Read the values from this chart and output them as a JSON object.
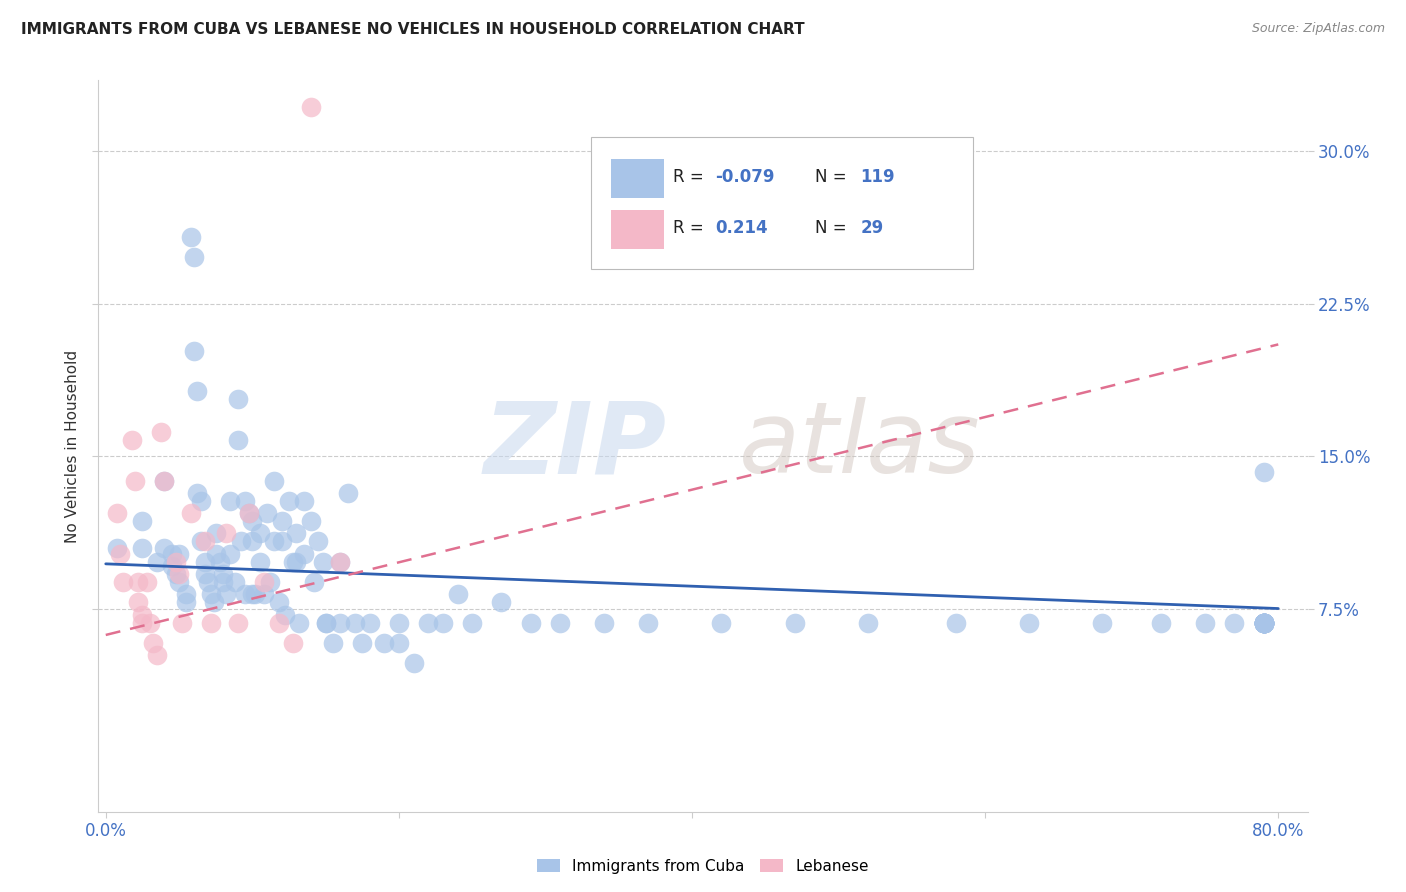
{
  "title": "IMMIGRANTS FROM CUBA VS LEBANESE NO VEHICLES IN HOUSEHOLD CORRELATION CHART",
  "source": "Source: ZipAtlas.com",
  "ylabel": "No Vehicles in Household",
  "ytick_labels": [
    "7.5%",
    "15.0%",
    "22.5%",
    "30.0%"
  ],
  "ytick_values": [
    0.075,
    0.15,
    0.225,
    0.3
  ],
  "xtick_labels": [
    "0.0%",
    "",
    "",
    "",
    "80.0%"
  ],
  "xtick_values": [
    0.0,
    0.2,
    0.4,
    0.6,
    0.8
  ],
  "xlim": [
    -0.005,
    0.82
  ],
  "ylim": [
    -0.025,
    0.335
  ],
  "legend_cuba_label": "Immigrants from Cuba",
  "legend_lebanese_label": "Lebanese",
  "cuba_color": "#a8c4e8",
  "lebanese_color": "#f4b8c8",
  "trend_cuba_color": "#3060b0",
  "trend_lebanese_color": "#e07090",
  "watermark_zip": "ZIP",
  "watermark_atlas": "atlas",
  "cuba_scatter_x": [
    0.008,
    0.025,
    0.025,
    0.035,
    0.04,
    0.04,
    0.045,
    0.045,
    0.048,
    0.05,
    0.05,
    0.055,
    0.055,
    0.058,
    0.06,
    0.06,
    0.062,
    0.062,
    0.065,
    0.065,
    0.068,
    0.068,
    0.07,
    0.072,
    0.074,
    0.075,
    0.075,
    0.078,
    0.08,
    0.08,
    0.082,
    0.085,
    0.085,
    0.088,
    0.09,
    0.09,
    0.092,
    0.095,
    0.095,
    0.098,
    0.1,
    0.1,
    0.1,
    0.102,
    0.105,
    0.105,
    0.108,
    0.11,
    0.112,
    0.115,
    0.115,
    0.118,
    0.12,
    0.12,
    0.122,
    0.125,
    0.128,
    0.13,
    0.13,
    0.132,
    0.135,
    0.135,
    0.14,
    0.142,
    0.145,
    0.148,
    0.15,
    0.15,
    0.155,
    0.16,
    0.16,
    0.165,
    0.17,
    0.175,
    0.18,
    0.19,
    0.2,
    0.2,
    0.21,
    0.22,
    0.23,
    0.24,
    0.25,
    0.27,
    0.29,
    0.31,
    0.34,
    0.37,
    0.42,
    0.47,
    0.52,
    0.58,
    0.63,
    0.68,
    0.72,
    0.75,
    0.77,
    0.79,
    0.79,
    0.79,
    0.79,
    0.79,
    0.79,
    0.79,
    0.79,
    0.79,
    0.79,
    0.79,
    0.79,
    0.79,
    0.79,
    0.79,
    0.79,
    0.79,
    0.79
  ],
  "cuba_scatter_y": [
    0.105,
    0.105,
    0.118,
    0.098,
    0.105,
    0.138,
    0.102,
    0.096,
    0.092,
    0.102,
    0.088,
    0.082,
    0.078,
    0.258,
    0.248,
    0.202,
    0.182,
    0.132,
    0.128,
    0.108,
    0.098,
    0.092,
    0.088,
    0.082,
    0.078,
    0.112,
    0.102,
    0.098,
    0.092,
    0.088,
    0.082,
    0.128,
    0.102,
    0.088,
    0.178,
    0.158,
    0.108,
    0.082,
    0.128,
    0.122,
    0.082,
    0.118,
    0.108,
    0.082,
    0.112,
    0.098,
    0.082,
    0.122,
    0.088,
    0.138,
    0.108,
    0.078,
    0.118,
    0.108,
    0.072,
    0.128,
    0.098,
    0.112,
    0.098,
    0.068,
    0.128,
    0.102,
    0.118,
    0.088,
    0.108,
    0.098,
    0.068,
    0.068,
    0.058,
    0.098,
    0.068,
    0.132,
    0.068,
    0.058,
    0.068,
    0.058,
    0.068,
    0.058,
    0.048,
    0.068,
    0.068,
    0.082,
    0.068,
    0.078,
    0.068,
    0.068,
    0.068,
    0.068,
    0.068,
    0.068,
    0.068,
    0.068,
    0.068,
    0.068,
    0.068,
    0.068,
    0.068,
    0.142,
    0.068,
    0.068,
    0.068,
    0.068,
    0.068,
    0.068,
    0.068,
    0.068,
    0.068,
    0.068,
    0.068,
    0.068,
    0.068,
    0.068,
    0.068,
    0.068,
    0.068
  ],
  "lebanese_scatter_x": [
    0.008,
    0.01,
    0.012,
    0.018,
    0.02,
    0.022,
    0.022,
    0.025,
    0.025,
    0.028,
    0.03,
    0.032,
    0.035,
    0.038,
    0.04,
    0.048,
    0.05,
    0.052,
    0.058,
    0.068,
    0.072,
    0.082,
    0.09,
    0.098,
    0.108,
    0.118,
    0.128,
    0.14,
    0.16
  ],
  "lebanese_scatter_y": [
    0.122,
    0.102,
    0.088,
    0.158,
    0.138,
    0.088,
    0.078,
    0.072,
    0.068,
    0.088,
    0.068,
    0.058,
    0.052,
    0.162,
    0.138,
    0.098,
    0.092,
    0.068,
    0.122,
    0.108,
    0.068,
    0.112,
    0.068,
    0.122,
    0.088,
    0.068,
    0.058,
    0.322,
    0.098
  ],
  "cuba_trend_x0": 0.0,
  "cuba_trend_x1": 0.8,
  "cuba_trend_y0": 0.097,
  "cuba_trend_y1": 0.075,
  "lebanese_trend_x0": 0.0,
  "lebanese_trend_x1": 0.8,
  "lebanese_trend_y0": 0.062,
  "lebanese_trend_y1": 0.205
}
